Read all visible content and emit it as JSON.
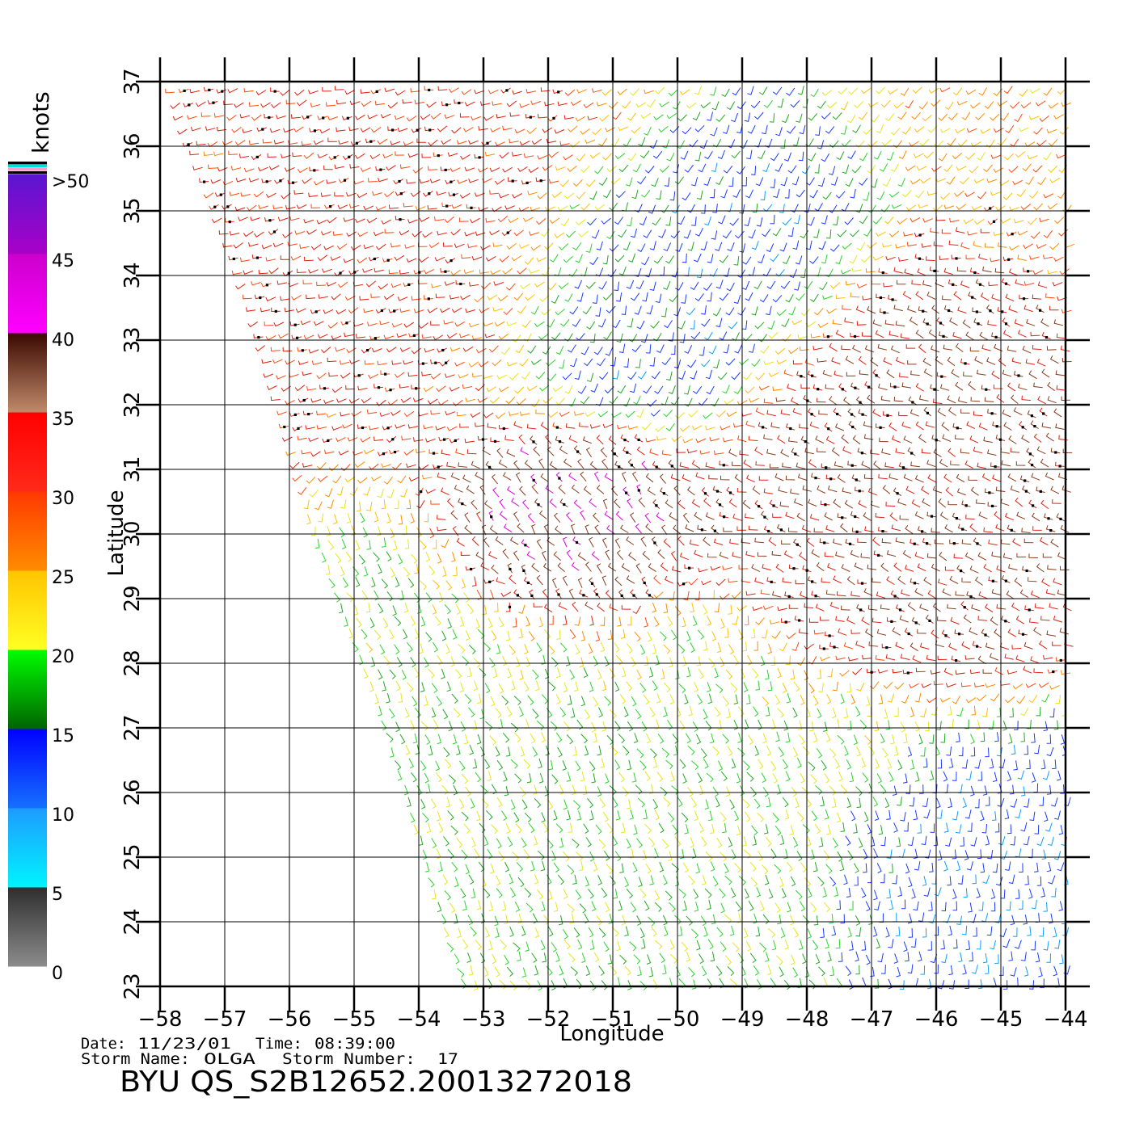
{
  "colorbar": {
    "unit": "knots",
    "tick_labels": [
      ">50",
      "45",
      "40",
      "35",
      "30",
      "25",
      "20",
      "15",
      "10",
      "5",
      "0"
    ],
    "segments": [
      {
        "from": 0,
        "to": 5,
        "top": "#2e2e2e",
        "bottom": "#8c8c8c"
      },
      {
        "from": 5,
        "to": 10,
        "top": "#1e9bff",
        "bottom": "#00f4ff"
      },
      {
        "from": 10,
        "to": 15,
        "top": "#0000ff",
        "bottom": "#1670ff"
      },
      {
        "from": 15,
        "to": 20,
        "top": "#00ff00",
        "bottom": "#006400"
      },
      {
        "from": 20,
        "to": 25,
        "top": "#ffc400",
        "bottom": "#ffff22"
      },
      {
        "from": 25,
        "to": 30,
        "top": "#ff3800",
        "bottom": "#ff8c00"
      },
      {
        "from": 30,
        "to": 35,
        "top": "#ff0000",
        "bottom": "#ff2a1a"
      },
      {
        "from": 35,
        "to": 40,
        "top": "#3a0800",
        "bottom": "#c08a6a"
      },
      {
        "from": 40,
        "to": 45,
        "top": "#cc00cc",
        "bottom": "#ff00ff"
      },
      {
        "from": 45,
        "to": 50,
        "top": "#5a16d0",
        "bottom": "#aa00c8"
      }
    ],
    "cap_colors": [
      "#000000",
      "#00dddd",
      "#ff99cc",
      "#000000"
    ]
  },
  "map": {
    "x_axis_title": "Longitude",
    "y_axis_title": "Latitude",
    "lon_range": [
      -58,
      -44
    ],
    "lat_range": [
      23,
      37
    ],
    "lon_ticks": [
      "−58",
      "−57",
      "−56",
      "−55",
      "−54",
      "−53",
      "−52",
      "−51",
      "−50",
      "−49",
      "−48",
      "−47",
      "−46",
      "−45",
      "−44"
    ],
    "lat_ticks": [
      "23",
      "24",
      "25",
      "26",
      "27",
      "28",
      "29",
      "30",
      "31",
      "32",
      "33",
      "34",
      "35",
      "36",
      "37"
    ],
    "grid": true,
    "swath_west_edge": [
      [
        -57.9,
        37
      ],
      [
        -56.6,
        33.5
      ],
      [
        -55.6,
        30.0
      ],
      [
        -54.5,
        27.0
      ],
      [
        -53.3,
        23.0
      ]
    ],
    "rain_flag_color": "#000000"
  },
  "wind_field": {
    "description_units": "knots",
    "regions": [
      {
        "name": "nw-strong",
        "speed": 31,
        "dir": 200
      },
      {
        "name": "center-storm",
        "speed": 41,
        "dir": 130
      },
      {
        "name": "east-storm",
        "speed": 36,
        "dir": 160
      },
      {
        "name": "weak-center",
        "speed": 12,
        "dir": 250
      },
      {
        "name": "south-moderate",
        "speed": 19,
        "dir": 300
      },
      {
        "name": "se-weak",
        "speed": 11,
        "dir": 270
      }
    ]
  },
  "footer": {
    "date_label": "Date:",
    "date_value": "11/23/01",
    "time_label": "Time:",
    "time_value": "08:39:00",
    "storm_name_label": "Storm  Name:",
    "storm_name_value": "OLGA",
    "storm_number_label": "Storm  Number:",
    "storm_number_value": "17",
    "product_id": "BYU  QS_S2B12652.20013272018"
  }
}
